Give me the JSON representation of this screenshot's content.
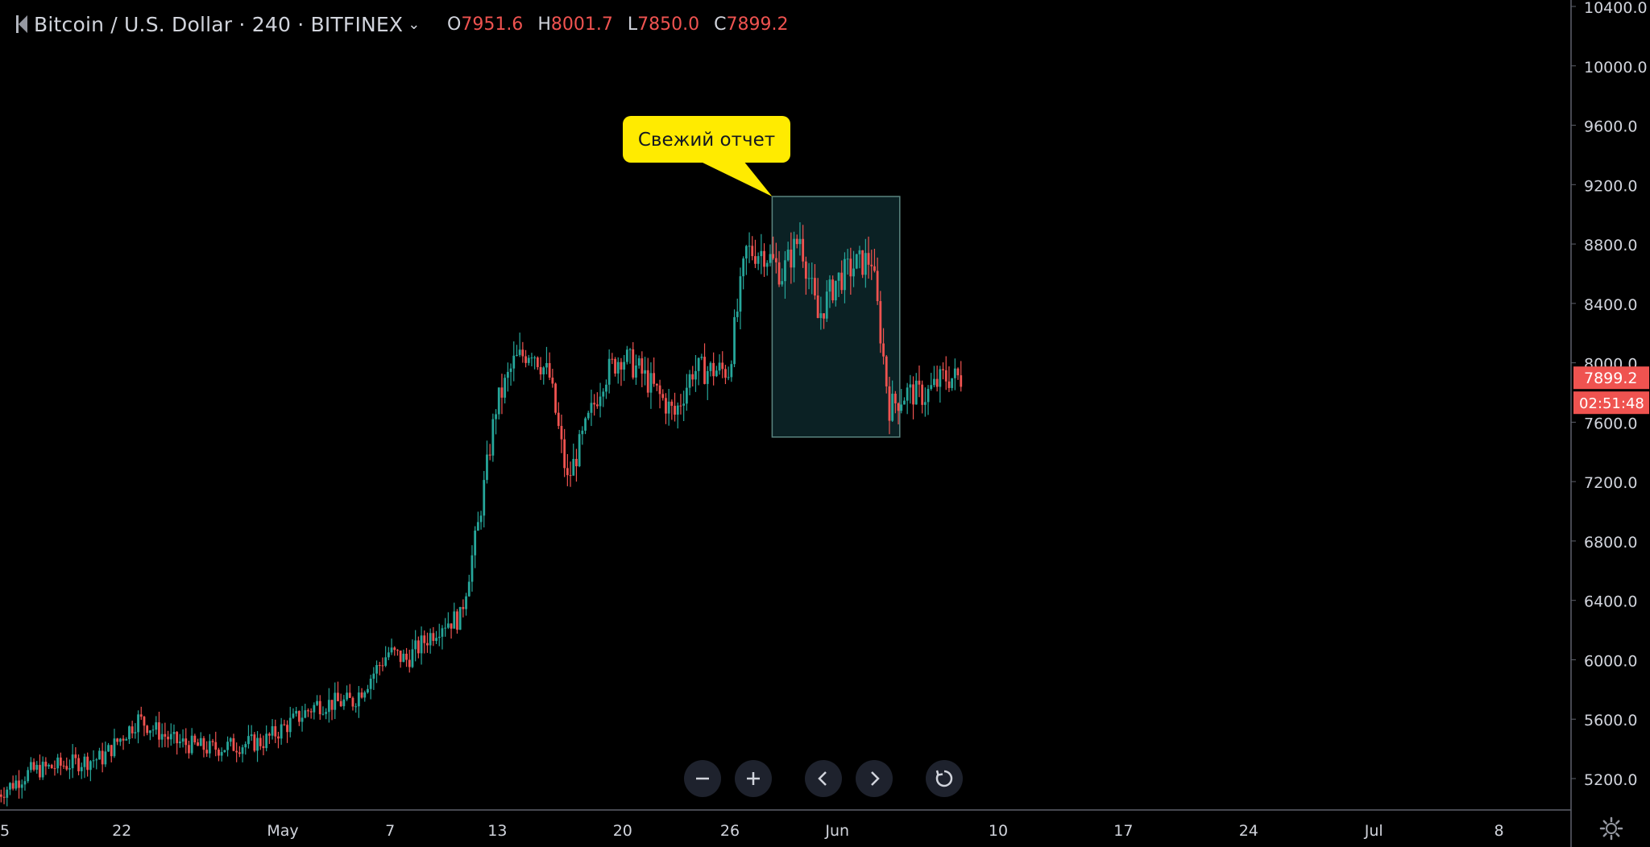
{
  "header": {
    "symbol": "Bitcoin / U.S. Dollar · 240 · BITFINEX",
    "ohlc": [
      {
        "key": "O",
        "value": "7951.6"
      },
      {
        "key": "H",
        "value": "8001.7"
      },
      {
        "key": "L",
        "value": "7850.0"
      },
      {
        "key": "C",
        "value": "7899.2"
      }
    ]
  },
  "colors": {
    "up": "#26a69a",
    "down": "#ef5350",
    "background": "#000000",
    "axis_text": "#d1d4dc",
    "callout": "#ffeb00",
    "highlight_fill": "#0b2124",
    "highlight_border": "#5a8580",
    "price_tag": "#ef5350"
  },
  "chart_data": {
    "type": "candlestick",
    "ylim": [
      5000,
      10500
    ],
    "y_ticks": [
      5200,
      5600,
      6000,
      6400,
      6800,
      7200,
      7600,
      8000,
      8400,
      8800,
      9200,
      9600,
      10000,
      10400
    ],
    "x_tick_labels": [
      "5",
      "22",
      "May",
      "7",
      "13",
      "20",
      "26",
      "Jun",
      "10",
      "17",
      "24",
      "Jul",
      "8"
    ],
    "last_price": "7899.2",
    "countdown": "02:51:48",
    "annotation": "Свежий отчет",
    "highlight_range": {
      "start": "2019-05-28",
      "end": "2019-06-04",
      "price_low": 7500,
      "price_high": 9120
    },
    "anchors": [
      {
        "date": "2019-04-15",
        "price": 5080
      },
      {
        "date": "2019-04-17",
        "price": 5250
      },
      {
        "date": "2019-04-21",
        "price": 5340
      },
      {
        "date": "2019-04-23",
        "price": 5600
      },
      {
        "date": "2019-04-25",
        "price": 5450
      },
      {
        "date": "2019-04-27",
        "price": 5400
      },
      {
        "date": "2019-04-30",
        "price": 5450
      },
      {
        "date": "2019-05-03",
        "price": 5700
      },
      {
        "date": "2019-05-05",
        "price": 5720
      },
      {
        "date": "2019-05-07",
        "price": 6050
      },
      {
        "date": "2019-05-08",
        "price": 6000
      },
      {
        "date": "2019-05-10",
        "price": 6250
      },
      {
        "date": "2019-05-11",
        "price": 6280
      },
      {
        "date": "2019-05-12",
        "price": 6900
      },
      {
        "date": "2019-05-13",
        "price": 7700
      },
      {
        "date": "2019-05-14",
        "price": 8000
      },
      {
        "date": "2019-05-15",
        "price": 8100
      },
      {
        "date": "2019-05-16",
        "price": 7900
      },
      {
        "date": "2019-05-17",
        "price": 7200
      },
      {
        "date": "2019-05-19",
        "price": 7900
      },
      {
        "date": "2019-05-20",
        "price": 8050
      },
      {
        "date": "2019-05-21",
        "price": 7950
      },
      {
        "date": "2019-05-22",
        "price": 7800
      },
      {
        "date": "2019-05-23",
        "price": 7650
      },
      {
        "date": "2019-05-24",
        "price": 7950
      },
      {
        "date": "2019-05-26",
        "price": 7950
      },
      {
        "date": "2019-05-27",
        "price": 8750
      },
      {
        "date": "2019-05-28",
        "price": 8750
      },
      {
        "date": "2019-05-29",
        "price": 8600
      },
      {
        "date": "2019-05-30",
        "price": 8850
      },
      {
        "date": "2019-05-31",
        "price": 8300
      },
      {
        "date": "2019-06-01",
        "price": 8550
      },
      {
        "date": "2019-06-02",
        "price": 8650
      },
      {
        "date": "2019-06-03",
        "price": 8700
      },
      {
        "date": "2019-06-04",
        "price": 7700
      },
      {
        "date": "2019-06-05",
        "price": 7800
      },
      {
        "date": "2019-06-06",
        "price": 7780
      },
      {
        "date": "2019-06-07",
        "price": 7900
      },
      {
        "date": "2019-06-08",
        "price": 7899
      }
    ]
  },
  "controls": {
    "zoom_out": "−",
    "zoom_in": "+"
  }
}
